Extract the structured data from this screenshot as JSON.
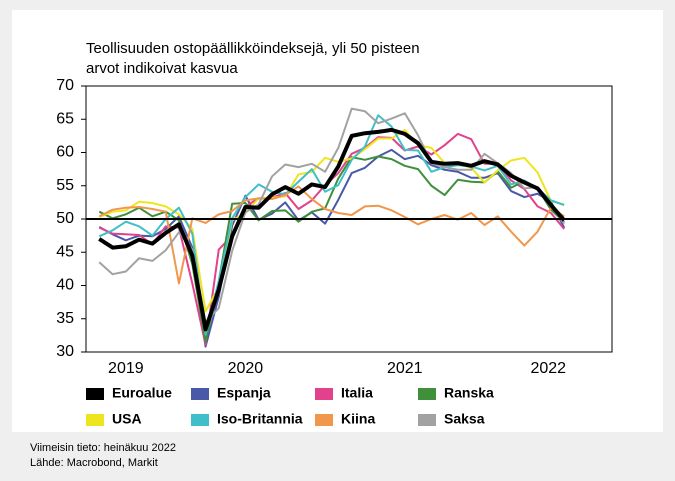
{
  "chart_data": {
    "type": "line",
    "title": [
      "Teollisuuden ostopäällikköindeksejä, yli 50 pisteen",
      "arvot indikoivat kasvua"
    ],
    "x": [
      2019.583,
      2019.667,
      2019.75,
      2019.833,
      2019.917,
      2020,
      2020.083,
      2020.167,
      2020.25,
      2020.333,
      2020.417,
      2020.5,
      2020.583,
      2020.667,
      2020.75,
      2020.833,
      2020.917,
      2021,
      2021.083,
      2021.167,
      2021.25,
      2021.333,
      2021.417,
      2021.5,
      2021.583,
      2021.667,
      2021.75,
      2021.833,
      2021.917,
      2022,
      2022.083,
      2022.167,
      2022.25,
      2022.333,
      2022.417,
      2022.5
    ],
    "xlim": [
      2019.5,
      2022.8
    ],
    "xticks": [
      {
        "value": 2019.75,
        "label": "2019"
      },
      {
        "value": 2020.5,
        "label": "2020"
      },
      {
        "value": 2021.5,
        "label": "2021"
      },
      {
        "value": 2022.4,
        "label": "2022"
      }
    ],
    "ylim": [
      30,
      70
    ],
    "yticks": [
      30,
      35,
      40,
      45,
      50,
      55,
      60,
      65,
      70
    ],
    "reference_line": 50,
    "series": [
      {
        "name": "Euroalue",
        "color": "#000000",
        "values": [
          47,
          45.7,
          45.9,
          46.9,
          46.3,
          47.9,
          49.2,
          44.5,
          33.4,
          39.4,
          47.4,
          51.8,
          51.7,
          53.7,
          54.8,
          53.8,
          55.2,
          54.8,
          57.9,
          62.5,
          62.9,
          63.1,
          63.4,
          62.8,
          61.4,
          58.6,
          58.3,
          58.4,
          58,
          58.7,
          58.2,
          56.5,
          55.5,
          54.6,
          52.1,
          49.8
        ]
      },
      {
        "name": "Espanja",
        "color": "#4a59a7",
        "values": [
          48.8,
          47.7,
          46.8,
          47.5,
          47.4,
          48.5,
          50.4,
          45.7,
          30.8,
          38.3,
          49,
          53.5,
          49.9,
          50.8,
          52.5,
          49.8,
          51,
          49.3,
          52.9,
          56.9,
          57.7,
          59.4,
          60.4,
          59,
          59.5,
          58.1,
          57.4,
          57.1,
          56.2,
          56.2,
          56.9,
          54.2,
          53.3,
          53.8,
          52.6,
          48.7
        ]
      },
      {
        "name": "Italia",
        "color": "#e2418b",
        "values": [
          48.7,
          47.8,
          47.7,
          47.6,
          46.2,
          48.9,
          48.7,
          40.3,
          31.1,
          45.4,
          47.5,
          51.9,
          53.1,
          53.2,
          53.9,
          51.5,
          52.8,
          55.1,
          56.9,
          59.8,
          60.7,
          62.3,
          62.2,
          60.3,
          60.9,
          59.7,
          61.1,
          62.8,
          62,
          58.3,
          58.3,
          55.8,
          54.5,
          51.9,
          50.9,
          48.5
        ]
      },
      {
        "name": "Ranska",
        "color": "#3f8f3b",
        "values": [
          51.1,
          50.1,
          50.7,
          51.7,
          50.4,
          51.1,
          49.8,
          43.2,
          31.5,
          40.6,
          52.3,
          52.4,
          49.8,
          51.2,
          51.3,
          49.6,
          51.1,
          51.6,
          56.1,
          59.3,
          58.9,
          59.4,
          59,
          58,
          57.5,
          55,
          53.6,
          55.9,
          55.6,
          55.5,
          57.2,
          54.7,
          55.7,
          54.6,
          51.4,
          49.5
        ]
      },
      {
        "name": "USA",
        "color": "#efe51f",
        "values": [
          50.3,
          51.1,
          51.3,
          52.6,
          52.4,
          51.9,
          50.7,
          48.5,
          36.1,
          39.8,
          49.8,
          50.9,
          53.1,
          53.2,
          53.4,
          56.7,
          57.1,
          59.2,
          58.6,
          59.1,
          60.5,
          62.1,
          62.1,
          63.4,
          61.1,
          60.7,
          58.4,
          58.3,
          57.7,
          55.5,
          57.3,
          58.8,
          59.2,
          57,
          52.7,
          52.2
        ]
      },
      {
        "name": "Iso-Britannia",
        "color": "#40bfc8",
        "values": [
          47.4,
          48.3,
          49.6,
          48.9,
          47.5,
          50,
          51.7,
          47.8,
          32.6,
          40.7,
          50.1,
          53.3,
          55.2,
          54.1,
          53.7,
          55.6,
          57.5,
          54.1,
          55.1,
          58.9,
          60.9,
          65.6,
          63.9,
          60.4,
          60.3,
          57.1,
          57.8,
          58.1,
          57.9,
          57.3,
          58,
          55.2,
          55.8,
          54.6,
          52.8,
          52.1
        ]
      },
      {
        "name": "Kiina",
        "color": "#f1974b",
        "values": [
          50.4,
          51.4,
          51.7,
          51.8,
          51.5,
          51.1,
          40.3,
          50.1,
          49.4,
          50.7,
          51.2,
          52.8,
          53.1,
          53,
          53.6,
          54.9,
          53,
          51.5,
          50.9,
          50.6,
          51.9,
          52,
          51.3,
          50.3,
          49.2,
          50,
          50.6,
          49.9,
          50.9,
          49.1,
          50.4,
          48.1,
          46,
          48.1,
          51.7,
          50.4
        ]
      },
      {
        "name": "Saksa",
        "color": "#a2a2a2",
        "values": [
          43.5,
          41.7,
          42.1,
          44.1,
          43.7,
          45.3,
          48,
          45.4,
          34.5,
          36.6,
          45.2,
          51,
          52.2,
          56.4,
          58.2,
          57.8,
          58.3,
          57.1,
          60.7,
          66.6,
          66.2,
          64.4,
          65.1,
          65.9,
          62.6,
          58.4,
          57.8,
          57.4,
          57.4,
          59.8,
          58.4,
          56.9,
          54.6,
          54.8,
          52,
          49.3
        ]
      }
    ],
    "notes": [
      "Viimeisin tieto: heinäkuu 2022",
      "Lähde: Macrobond, Markit"
    ]
  }
}
